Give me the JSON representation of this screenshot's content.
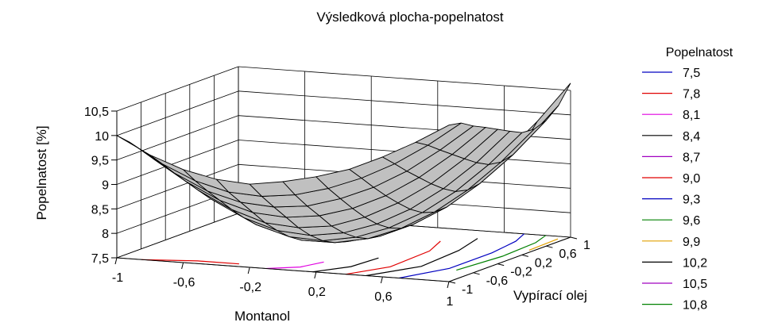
{
  "chart_data": {
    "type": "surface3d",
    "title": "Výsledková plocha-popelnatost",
    "xlabel": "Montanol",
    "ylabel": "Vypírací olej",
    "zlabel": "Popelnatost  [%]",
    "x_ticks": [
      "-1",
      "-0,6",
      "-0,2",
      "0,2",
      "0,6",
      "1"
    ],
    "y_ticks": [
      "-1",
      "-0,6",
      "-0,2",
      "0,2",
      "0,6",
      "1"
    ],
    "z_ticks": [
      "7,5",
      "8",
      "8,5",
      "9",
      "9,5",
      "10",
      "10,5"
    ],
    "xlim": [
      -1,
      1
    ],
    "ylim": [
      -1,
      1
    ],
    "zlim": [
      7.5,
      10.5
    ],
    "grid": true,
    "surface_color": "#c0c0c0",
    "surface_grid": [
      [
        10.0,
        9.65,
        9.4,
        9.25,
        9.2,
        9.3,
        9.45,
        9.65,
        9.95,
        10.3,
        10.7
      ],
      [
        9.78,
        9.38,
        9.08,
        8.9,
        8.86,
        8.94,
        9.12,
        9.38,
        9.72,
        10.15,
        10.65
      ],
      [
        9.52,
        9.1,
        8.78,
        8.6,
        8.55,
        8.62,
        8.82,
        9.1,
        9.48,
        9.96,
        10.5
      ],
      [
        9.25,
        8.83,
        8.5,
        8.3,
        8.25,
        8.33,
        8.53,
        8.84,
        9.26,
        9.78,
        10.38
      ],
      [
        9.0,
        8.56,
        8.22,
        8.0,
        7.95,
        8.03,
        8.26,
        8.6,
        9.04,
        9.6,
        10.25
      ],
      [
        8.75,
        8.3,
        7.96,
        7.75,
        7.7,
        7.8,
        8.03,
        8.38,
        8.85,
        9.43,
        10.12
      ],
      [
        8.52,
        8.07,
        7.73,
        7.53,
        7.5,
        7.62,
        7.86,
        8.22,
        8.7,
        9.3,
        10.0
      ],
      [
        8.32,
        7.88,
        7.55,
        7.37,
        7.37,
        7.5,
        7.76,
        8.14,
        8.64,
        9.26,
        9.98
      ],
      [
        8.16,
        7.73,
        7.42,
        7.27,
        7.3,
        7.46,
        7.75,
        8.15,
        8.68,
        9.32,
        10.07
      ],
      [
        8.02,
        7.62,
        7.35,
        7.24,
        7.3,
        7.5,
        7.83,
        8.27,
        8.83,
        9.5,
        10.28
      ],
      [
        7.9,
        7.55,
        7.35,
        7.28,
        7.38,
        7.63,
        8.0,
        8.5,
        9.1,
        9.82,
        10.65
      ]
    ],
    "legend": {
      "title": "Popelnatost",
      "placement": "right",
      "items": [
        {
          "label": "7,5",
          "color": "#0000c0"
        },
        {
          "label": "7,8",
          "color": "#e00000"
        },
        {
          "label": "8,1",
          "color": "#e000e0"
        },
        {
          "label": "8,4",
          "color": "#000000"
        },
        {
          "label": "8,7",
          "color": "#a000c0"
        },
        {
          "label": "9,0",
          "color": "#e00000"
        },
        {
          "label": "9,3",
          "color": "#0000c0"
        },
        {
          "label": "9,6",
          "color": "#008000"
        },
        {
          "label": "9,9",
          "color": "#e0a000"
        },
        {
          "label": "10,2",
          "color": "#000000"
        },
        {
          "label": "10,5",
          "color": "#a000c0"
        },
        {
          "label": "10,8",
          "color": "#008000"
        }
      ]
    }
  }
}
